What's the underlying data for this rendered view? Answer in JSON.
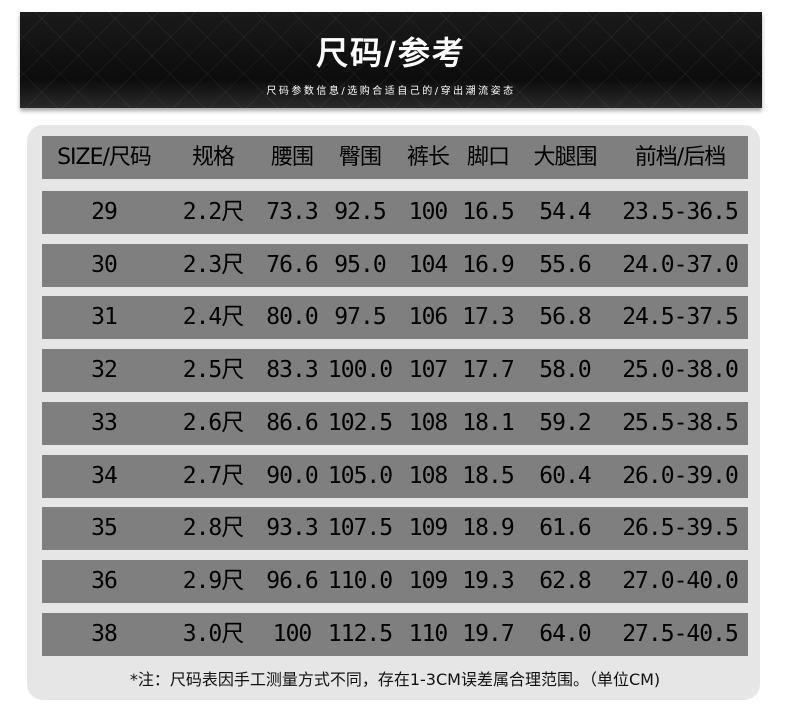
{
  "banner": {
    "title": "尺码/参考",
    "subtitle": "尺码参数信息/选购合适自己的/穿出潮流姿态"
  },
  "table": {
    "headers": [
      "SIZE/尺码",
      "规格",
      "腰围",
      "臀围",
      "裤长",
      "脚口",
      "大腿围",
      "前档/后档"
    ],
    "rows": [
      [
        "29",
        "2.2尺",
        "73.3",
        "92.5",
        "100",
        "16.5",
        "54.4",
        "23.5-36.5"
      ],
      [
        "30",
        "2.3尺",
        "76.6",
        "95.0",
        "104",
        "16.9",
        "55.6",
        "24.0-37.0"
      ],
      [
        "31",
        "2.4尺",
        "80.0",
        "97.5",
        "106",
        "17.3",
        "56.8",
        "24.5-37.5"
      ],
      [
        "32",
        "2.5尺",
        "83.3",
        "100.0",
        "107",
        "17.7",
        "58.0",
        "25.0-38.0"
      ],
      [
        "33",
        "2.6尺",
        "86.6",
        "102.5",
        "108",
        "18.1",
        "59.2",
        "25.5-38.5"
      ],
      [
        "34",
        "2.7尺",
        "90.0",
        "105.0",
        "108",
        "18.5",
        "60.4",
        "26.0-39.0"
      ],
      [
        "35",
        "2.8尺",
        "93.3",
        "107.5",
        "109",
        "18.9",
        "61.6",
        "26.5-39.5"
      ],
      [
        "36",
        "2.9尺",
        "96.6",
        "110.0",
        "109",
        "19.3",
        "62.8",
        "27.0-40.0"
      ],
      [
        "38",
        "3.0尺",
        "100",
        "112.5",
        "110",
        "19.7",
        "64.0",
        "27.5-40.5"
      ]
    ]
  },
  "note": "*注：尺码表因手工测量方式不同，存在1-3CM误差属合理范围。（单位CM)"
}
